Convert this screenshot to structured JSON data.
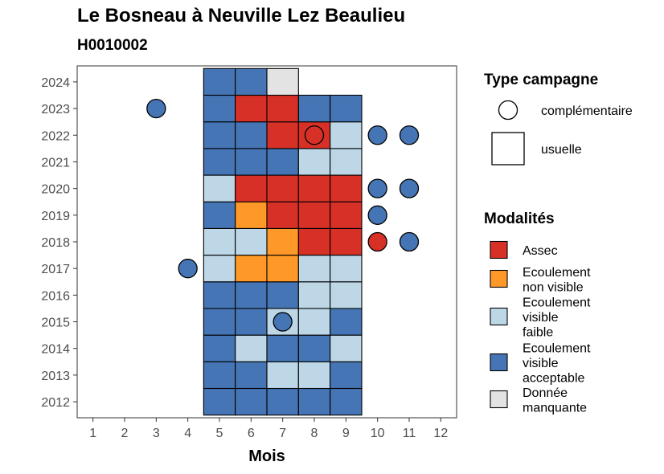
{
  "header": {
    "title": "Le Bosneau à Neuville Lez Beaulieu",
    "subtitle": "H0010002"
  },
  "chart_data": {
    "type": "heatmap",
    "xlabel": "Mois",
    "ylabel": "",
    "x_ticks": [
      1,
      2,
      3,
      4,
      5,
      6,
      7,
      8,
      9,
      10,
      11,
      12
    ],
    "y_ticks": [
      2012,
      2013,
      2014,
      2015,
      2016,
      2017,
      2018,
      2019,
      2020,
      2021,
      2022,
      2023,
      2024
    ],
    "xlim": [
      0.5,
      12.5
    ],
    "ylim": [
      2011.4,
      2024.6
    ],
    "grid": false,
    "legend_position": "right",
    "modalites": [
      {
        "key": "assec",
        "label_lines": [
          "Assec"
        ],
        "color": "#d73027"
      },
      {
        "key": "nv",
        "label_lines": [
          "Ecoulement",
          "non visible"
        ],
        "color": "#fe9929"
      },
      {
        "key": "vf",
        "label_lines": [
          "Ecoulement",
          "visible",
          "faible"
        ],
        "color": "#bdd7e7"
      },
      {
        "key": "va",
        "label_lines": [
          "Ecoulement",
          "visible",
          "acceptable"
        ],
        "color": "#4575b4"
      },
      {
        "key": "nd",
        "label_lines": [
          "Donnée",
          "manquante"
        ],
        "color": "#e3e3e3"
      }
    ],
    "type_campagne": {
      "title": "Type campagne",
      "items": [
        {
          "key": "complementaire",
          "label": "complémentaire",
          "shape": "circle"
        },
        {
          "key": "usuelle",
          "label": "usuelle",
          "shape": "square"
        }
      ]
    },
    "modalites_title": "Modalités",
    "usuelle": {
      "months": [
        5,
        6,
        7,
        8,
        9
      ],
      "rows": [
        {
          "year": 2012,
          "values": [
            "va",
            "va",
            "va",
            "va",
            "va"
          ]
        },
        {
          "year": 2013,
          "values": [
            "va",
            "va",
            "vf",
            "vf",
            "va"
          ]
        },
        {
          "year": 2014,
          "values": [
            "va",
            "vf",
            "va",
            "va",
            "vf"
          ]
        },
        {
          "year": 2015,
          "values": [
            "va",
            "va",
            "vf",
            "vf",
            "va"
          ]
        },
        {
          "year": 2016,
          "values": [
            "va",
            "va",
            "va",
            "vf",
            "vf"
          ]
        },
        {
          "year": 2017,
          "values": [
            "vf",
            "nv",
            "nv",
            "vf",
            "vf"
          ]
        },
        {
          "year": 2018,
          "values": [
            "vf",
            "vf",
            "nv",
            "assec",
            "assec"
          ]
        },
        {
          "year": 2019,
          "values": [
            "va",
            "nv",
            "assec",
            "assec",
            "assec"
          ]
        },
        {
          "year": 2020,
          "values": [
            "vf",
            "assec",
            "assec",
            "assec",
            "assec"
          ]
        },
        {
          "year": 2021,
          "values": [
            "va",
            "va",
            "va",
            "vf",
            "vf"
          ]
        },
        {
          "year": 2022,
          "values": [
            "va",
            "va",
            "assec",
            "assec",
            "vf"
          ]
        },
        {
          "year": 2023,
          "values": [
            "va",
            "assec",
            "assec",
            "va",
            "va"
          ]
        },
        {
          "year": 2024,
          "values": [
            "va",
            "va",
            "nd",
            null,
            null
          ]
        }
      ]
    },
    "complementaire": [
      {
        "year": 2023,
        "month": 3,
        "value": "va"
      },
      {
        "year": 2022,
        "month": 8,
        "value": "assec"
      },
      {
        "year": 2022,
        "month": 10,
        "value": "va"
      },
      {
        "year": 2022,
        "month": 11,
        "value": "va"
      },
      {
        "year": 2020,
        "month": 10,
        "value": "va"
      },
      {
        "year": 2020,
        "month": 11,
        "value": "va"
      },
      {
        "year": 2019,
        "month": 10,
        "value": "va"
      },
      {
        "year": 2018,
        "month": 10,
        "value": "assec"
      },
      {
        "year": 2018,
        "month": 11,
        "value": "va"
      },
      {
        "year": 2017,
        "month": 4,
        "value": "va"
      },
      {
        "year": 2015,
        "month": 7,
        "value": "va"
      }
    ]
  }
}
